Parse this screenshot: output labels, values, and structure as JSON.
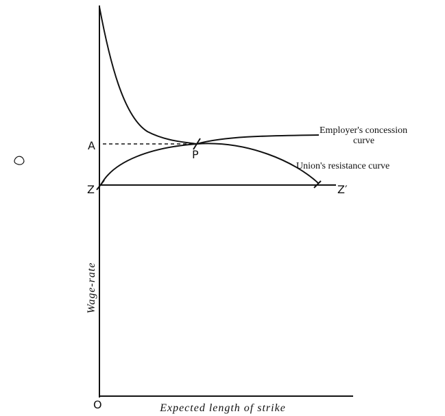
{
  "points": {
    "a": "A",
    "p": "P",
    "z": "Z",
    "z_prime": "Z′",
    "origin": "O"
  },
  "curves": {
    "employer": [
      "Employer's concession",
      "curve"
    ],
    "union": "Union's resistance curve"
  },
  "axes": {
    "y": "Wage-rate",
    "x": "Expected length of strike"
  }
}
